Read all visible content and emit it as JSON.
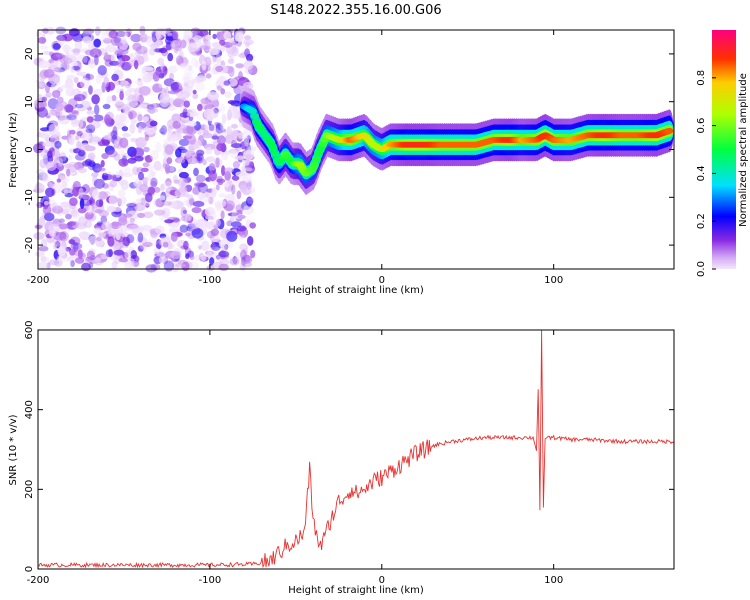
{
  "title": "S148.2022.355.16.00.G06",
  "colors": {
    "snr_line": "#e8312f",
    "frame": "#000000"
  },
  "chart_data": [
    {
      "type": "heatmap",
      "xlabel": "Height of straight line (km)",
      "ylabel": "Frequency (Hz)",
      "xlim": [
        -200,
        170
      ],
      "ylim": [
        -25,
        25
      ],
      "x_ticks": [
        -200,
        -100,
        0,
        100
      ],
      "y_ticks": [
        -20,
        -10,
        0,
        10,
        20
      ],
      "colorbar": {
        "label": "Normalized spectral amplitude",
        "range": [
          0,
          1
        ],
        "ticks": [
          0.0,
          0.2,
          0.4,
          0.6,
          0.8
        ],
        "colormap": "rainbow"
      },
      "noise_region": {
        "x_range": [
          -200,
          -75
        ],
        "y_range": [
          -25,
          25
        ]
      },
      "ridge": [
        {
          "x": -80,
          "y": 9,
          "amp": 0.3
        },
        {
          "x": -75,
          "y": 8,
          "amp": 0.4
        },
        {
          "x": -72,
          "y": 5,
          "amp": 0.5
        },
        {
          "x": -68,
          "y": 3,
          "amp": 0.45
        },
        {
          "x": -64,
          "y": 1,
          "amp": 0.5
        },
        {
          "x": -60,
          "y": -3,
          "amp": 0.45
        },
        {
          "x": -56,
          "y": -1,
          "amp": 0.55
        },
        {
          "x": -52,
          "y": -3,
          "amp": 0.5
        },
        {
          "x": -48,
          "y": -3,
          "amp": 0.65
        },
        {
          "x": -44,
          "y": -5,
          "amp": 0.6
        },
        {
          "x": -40,
          "y": -4,
          "amp": 0.55
        },
        {
          "x": -36,
          "y": 0,
          "amp": 0.5
        },
        {
          "x": -32,
          "y": 3,
          "amp": 0.6
        },
        {
          "x": -25,
          "y": 2,
          "amp": 0.7
        },
        {
          "x": -18,
          "y": 2,
          "amp": 0.85
        },
        {
          "x": -10,
          "y": 3,
          "amp": 0.75
        },
        {
          "x": -5,
          "y": 1,
          "amp": 0.65
        },
        {
          "x": 0,
          "y": 0,
          "amp": 0.7
        },
        {
          "x": 5,
          "y": 1,
          "amp": 0.8
        },
        {
          "x": 15,
          "y": 1,
          "amp": 0.9
        },
        {
          "x": 25,
          "y": 1,
          "amp": 0.9
        },
        {
          "x": 35,
          "y": 1,
          "amp": 0.85
        },
        {
          "x": 45,
          "y": 1,
          "amp": 0.85
        },
        {
          "x": 55,
          "y": 1,
          "amp": 0.85
        },
        {
          "x": 65,
          "y": 2,
          "amp": 0.85
        },
        {
          "x": 75,
          "y": 2,
          "amp": 0.9
        },
        {
          "x": 82,
          "y": 2,
          "amp": 0.8
        },
        {
          "x": 90,
          "y": 2,
          "amp": 0.85
        },
        {
          "x": 95,
          "y": 3,
          "amp": 0.9
        },
        {
          "x": 100,
          "y": 2,
          "amp": 0.85
        },
        {
          "x": 110,
          "y": 2,
          "amp": 0.8
        },
        {
          "x": 120,
          "y": 3,
          "amp": 0.85
        },
        {
          "x": 130,
          "y": 3,
          "amp": 0.9
        },
        {
          "x": 140,
          "y": 3,
          "amp": 0.85
        },
        {
          "x": 150,
          "y": 3,
          "amp": 0.85
        },
        {
          "x": 160,
          "y": 3,
          "amp": 0.9
        },
        {
          "x": 168,
          "y": 4,
          "amp": 0.85
        }
      ]
    },
    {
      "type": "line",
      "xlabel": "Height of straight line (km)",
      "ylabel": "SNR (10 * v/v)",
      "xlim": [
        -200,
        170
      ],
      "ylim": [
        0,
        600
      ],
      "x_ticks": [
        -200,
        -100,
        0,
        100
      ],
      "y_ticks": [
        0,
        200,
        400,
        600
      ],
      "series": [
        {
          "x": [
            -200,
            -150,
            -100,
            -75,
            -65,
            -60,
            -55,
            -50,
            -45,
            -42,
            -40,
            -38,
            -35,
            -30,
            -25,
            -22,
            -18,
            -15,
            -10,
            -5,
            0,
            10,
            20,
            30,
            40,
            50,
            60,
            70,
            80,
            88,
            90,
            91,
            92,
            93,
            94,
            95,
            100,
            110,
            120,
            140,
            160,
            170
          ],
          "y": [
            10,
            10,
            10,
            12,
            20,
            40,
            60,
            70,
            90,
            250,
            130,
            80,
            60,
            120,
            170,
            180,
            200,
            190,
            200,
            220,
            230,
            260,
            290,
            310,
            320,
            325,
            330,
            330,
            330,
            330,
            300,
            450,
            150,
            600,
            150,
            330,
            330,
            325,
            325,
            320,
            320,
            320
          ]
        }
      ]
    }
  ]
}
